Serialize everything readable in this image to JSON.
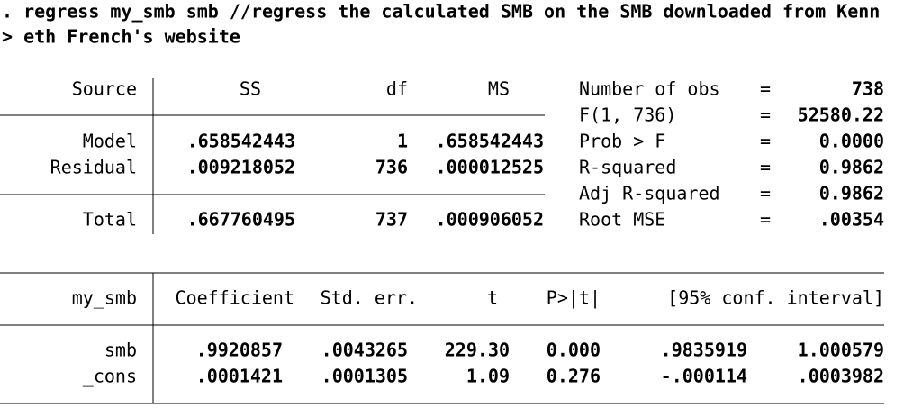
{
  "command": {
    "lines": [
      ". regress my_smb smb //regress the calculated SMB on the SMB downloaded from Kenn",
      "> eth French's website"
    ]
  },
  "anova": {
    "header": [
      "Source",
      "SS",
      "df",
      "MS"
    ],
    "rows": [
      [
        "Model",
        ".658542443",
        "1",
        ".658542443"
      ],
      [
        "Residual",
        ".009218052",
        "736",
        ".000012525"
      ],
      [
        "Total",
        ".667760495",
        "737",
        ".000906052"
      ]
    ]
  },
  "stats": {
    "rows": [
      [
        "Number of obs",
        "=",
        "738"
      ],
      [
        "F(1, 736)",
        "=",
        "52580.22"
      ],
      [
        "Prob > F",
        "=",
        "0.0000"
      ],
      [
        "R-squared",
        "=",
        "0.9862"
      ],
      [
        "Adj R-squared",
        "=",
        "0.9862"
      ],
      [
        "Root MSE",
        "=",
        ".00354"
      ]
    ]
  },
  "coef": {
    "header": [
      "my_smb",
      "Coefficient",
      "Std. err.",
      "t",
      "P>|t|",
      "[95% conf. interval]"
    ],
    "rows": [
      [
        "smb",
        ".9920857",
        ".0043265",
        "229.30",
        "0.000",
        ".9835919",
        "1.000579"
      ],
      [
        "_cons",
        ".0001421",
        ".0001305",
        "1.09",
        "0.276",
        "-.000114",
        ".0003982"
      ]
    ]
  }
}
